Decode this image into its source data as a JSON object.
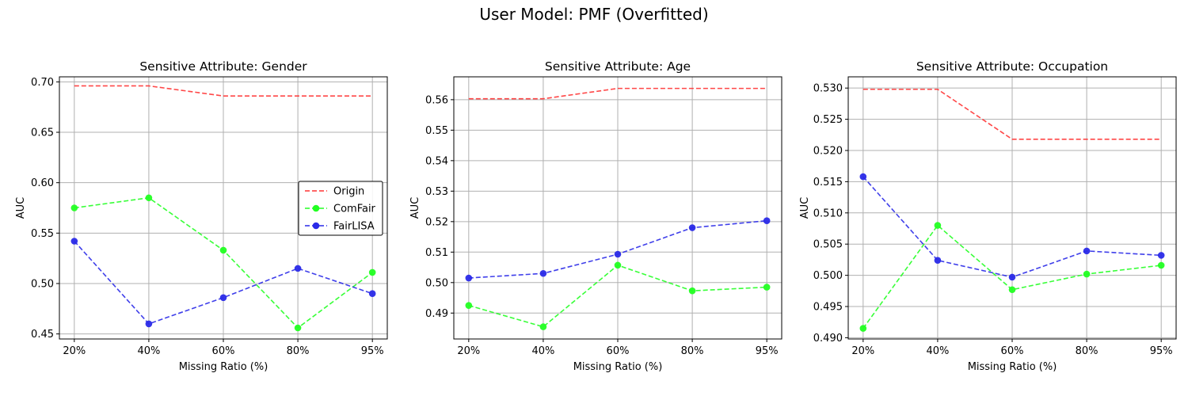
{
  "figure": {
    "title": "User Model: PMF (Overfitted)"
  },
  "chart_data": [
    {
      "type": "line",
      "title": "Sensitive Attribute: Gender",
      "xlabel": "Missing Ratio (%)",
      "ylabel": "AUC",
      "categories": [
        "20%",
        "40%",
        "60%",
        "80%",
        "95%"
      ],
      "ylim": [
        0.445,
        0.705
      ],
      "yticks": [
        "0.45",
        "0.50",
        "0.55",
        "0.60",
        "0.65",
        "0.70"
      ],
      "grid": true,
      "legend": {
        "placement": "center-right"
      },
      "series": [
        {
          "name": "Origin",
          "color": "#ff3333",
          "style": "dashed",
          "markers": false,
          "values": [
            0.696,
            0.696,
            0.686,
            0.686,
            0.686
          ]
        },
        {
          "name": "ComFair",
          "color": "#22ff22",
          "style": "dashed",
          "markers": true,
          "values": [
            0.575,
            0.585,
            0.533,
            0.456,
            0.511
          ]
        },
        {
          "name": "FairLISA",
          "color": "#2a2ae8",
          "style": "dashed",
          "markers": true,
          "values": [
            0.542,
            0.46,
            0.486,
            0.515,
            0.49
          ]
        }
      ]
    },
    {
      "type": "line",
      "title": "Sensitive Attribute: Age",
      "xlabel": "Missing Ratio (%)",
      "ylabel": "AUC",
      "categories": [
        "20%",
        "40%",
        "60%",
        "80%",
        "95%"
      ],
      "ylim": [
        0.4815,
        0.5675
      ],
      "yticks": [
        "0.49",
        "0.50",
        "0.51",
        "0.52",
        "0.53",
        "0.54",
        "0.55",
        "0.56"
      ],
      "grid": true,
      "series": [
        {
          "name": "Origin",
          "color": "#ff3333",
          "style": "dashed",
          "markers": false,
          "values": [
            0.5603,
            0.5603,
            0.5637,
            0.5637,
            0.5637
          ]
        },
        {
          "name": "ComFair",
          "color": "#22ff22",
          "style": "dashed",
          "markers": true,
          "values": [
            0.4925,
            0.4855,
            0.5057,
            0.4973,
            0.4985
          ]
        },
        {
          "name": "FairLISA",
          "color": "#2a2ae8",
          "style": "dashed",
          "markers": true,
          "values": [
            0.5015,
            0.503,
            0.5093,
            0.518,
            0.5203
          ]
        }
      ]
    },
    {
      "type": "line",
      "title": "Sensitive Attribute: Occupation",
      "xlabel": "Missing Ratio (%)",
      "ylabel": "AUC",
      "categories": [
        "20%",
        "40%",
        "60%",
        "80%",
        "95%"
      ],
      "ylim": [
        0.4898,
        0.5318
      ],
      "yticks": [
        "0.490",
        "0.495",
        "0.500",
        "0.505",
        "0.510",
        "0.515",
        "0.520",
        "0.525",
        "0.530"
      ],
      "grid": true,
      "series": [
        {
          "name": "Origin",
          "color": "#ff3333",
          "style": "dashed",
          "markers": false,
          "values": [
            0.5298,
            0.5298,
            0.5218,
            0.5218,
            0.5218
          ]
        },
        {
          "name": "ComFair",
          "color": "#22ff22",
          "style": "dashed",
          "markers": true,
          "values": [
            0.4915,
            0.508,
            0.4977,
            0.5002,
            0.5016
          ]
        },
        {
          "name": "FairLISA",
          "color": "#2a2ae8",
          "style": "dashed",
          "markers": true,
          "values": [
            0.5158,
            0.5024,
            0.4997,
            0.5039,
            0.5032
          ]
        }
      ]
    }
  ]
}
